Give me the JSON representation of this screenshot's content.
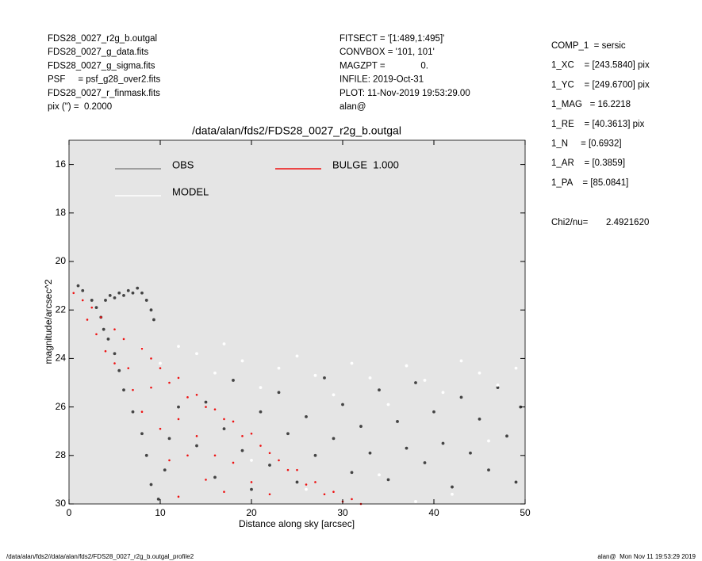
{
  "header": {
    "left": [
      "FDS28_0027_r2g_b.outgal",
      "FDS28_0027_g_data.fits",
      "FDS28_0027_g_sigma.fits",
      "PSF     = psf_g28_over2.fits",
      "FDS28_0027_r_finmask.fits",
      "pix (\") =  0.2000"
    ],
    "middle": [
      "FITSECT = '[1:489,1:495]'",
      "CONVBOX = '101, 101'",
      "MAGZPT =              0.",
      "INFILE: 2019-Oct-31",
      "PLOT: 11-Nov-2019 19:53:29.00",
      "alan@"
    ],
    "right": [
      "COMP_1  = sersic",
      "1_XC    = [243.5840] pix",
      "1_YC    = [249.6700] pix",
      "1_MAG   = 16.2218",
      "1_RE    = [40.3613] pix",
      "1_N     = [0.6932]",
      "1_AR    = [0.3859]",
      "1_PA    = [85.0841]"
    ],
    "chi_label": "Chi2/nu=",
    "chi_value": "2.4921620"
  },
  "footer": {
    "left": "/data/alan/fds2//data/alan/fds2/FDS28_0027_r2g_b.outgal_profile2",
    "right": "alan@  Mon Nov 11 19:53:29 2019"
  },
  "chart_data": {
    "type": "scatter",
    "title": "/data/alan/fds2/FDS28_0027_r2g_b.outgal",
    "x_label": "Distance along sky [arcsec]",
    "y_label": "magnitude/arcsec^2",
    "xlim": [
      0,
      50
    ],
    "xticks": [
      0,
      10,
      20,
      30,
      40,
      50
    ],
    "ylim": [
      30,
      15
    ],
    "yticks": [
      16,
      18,
      20,
      22,
      24,
      26,
      28,
      30
    ],
    "series": [
      {
        "name": "OBS",
        "color": "#444444",
        "line_color": "#888888",
        "x": [
          1,
          1.5,
          2.5,
          3,
          3.5,
          4,
          4.5,
          5,
          5.5,
          6,
          6.5,
          7,
          7.5,
          8,
          8.5,
          9,
          9.3,
          3.8,
          4.3,
          5,
          5.5,
          6,
          7,
          8,
          8.5,
          9,
          9.8,
          10.5,
          11,
          12,
          14,
          15,
          16,
          17,
          18,
          19,
          20,
          21,
          22,
          23,
          24,
          25,
          26,
          27,
          28,
          29,
          30,
          31,
          32,
          33,
          34,
          35,
          36,
          37,
          38,
          39,
          40,
          41,
          42,
          43,
          44,
          45,
          46,
          47,
          48,
          49,
          49.5
        ],
        "y": [
          21.0,
          21.2,
          21.6,
          21.9,
          22.3,
          21.6,
          21.4,
          21.5,
          21.3,
          21.4,
          21.2,
          21.3,
          21.1,
          21.3,
          21.6,
          22.0,
          22.4,
          22.8,
          23.2,
          23.8,
          24.5,
          25.3,
          26.2,
          27.1,
          28,
          29.2,
          29.8,
          28.6,
          27.3,
          26.0,
          27.6,
          25.8,
          28.9,
          26.9,
          24.9,
          27.8,
          29.4,
          26.2,
          28.4,
          25.4,
          27.1,
          29.1,
          26.4,
          28.0,
          24.8,
          27.3,
          25.9,
          28.7,
          26.8,
          27.9,
          25.3,
          29.0,
          26.6,
          27.7,
          25.0,
          28.3,
          26.2,
          27.5,
          29.3,
          25.6,
          27.9,
          26.5,
          28.6,
          25.2,
          27.2,
          29.1,
          26.0
        ]
      },
      {
        "name": "MODEL",
        "color": "#ffffff",
        "line_color": "#ffffff",
        "x": [
          8,
          10,
          12,
          14,
          16,
          17,
          19,
          21,
          23,
          25,
          27,
          29,
          31,
          33,
          35,
          37,
          39,
          41,
          43,
          45,
          47,
          49,
          20,
          26,
          34,
          42,
          46,
          38,
          30
        ],
        "y": [
          23.6,
          24.2,
          23.5,
          23.8,
          24.6,
          23.4,
          24.1,
          25.2,
          24.4,
          23.9,
          24.7,
          25.5,
          24.2,
          24.8,
          25.9,
          24.3,
          24.9,
          25.4,
          24.1,
          24.6,
          25.1,
          24.4,
          28.2,
          29.4,
          28.8,
          29.6,
          27.4,
          29.9,
          30.0
        ]
      },
      {
        "name": "BULGE  1.000",
        "color": "#ee1111",
        "line_color": "#ee1111",
        "x": [
          0.5,
          1.5,
          2.5,
          3.5,
          2,
          3,
          4,
          5,
          5,
          6,
          6.5,
          7,
          8,
          8,
          9,
          9,
          10,
          10,
          11,
          11,
          12,
          12,
          12,
          13,
          13,
          14,
          14,
          15,
          15,
          16,
          16,
          17,
          17,
          18,
          18,
          19,
          20,
          20,
          21,
          22,
          22,
          23,
          24,
          25,
          26,
          27,
          28,
          29,
          30,
          31,
          32
        ],
        "y": [
          21.3,
          21.6,
          21.9,
          22.3,
          22.4,
          23.0,
          23.7,
          24.2,
          22.8,
          23.2,
          24.4,
          25.3,
          23.6,
          26.2,
          24.0,
          25.2,
          24.4,
          26.9,
          25.0,
          28.2,
          24.8,
          26.5,
          29.7,
          25.6,
          28.0,
          25.5,
          27.2,
          26.0,
          29.0,
          26.1,
          28.0,
          26.5,
          29.5,
          26.6,
          28.3,
          27.2,
          27.1,
          29.1,
          27.6,
          27.9,
          29.6,
          28.2,
          28.6,
          28.6,
          29.2,
          29.1,
          29.6,
          29.5,
          29.9,
          29.8,
          30.0
        ]
      }
    ]
  }
}
